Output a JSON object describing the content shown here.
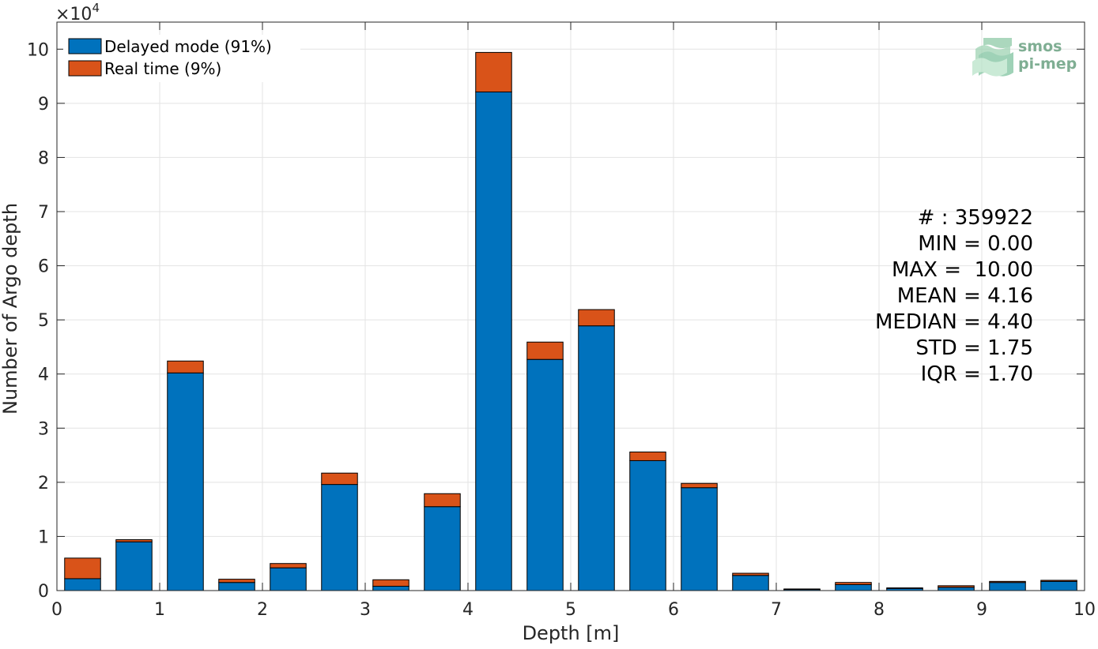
{
  "chart_data": {
    "type": "bar",
    "stacked": true,
    "x": [
      0.25,
      0.75,
      1.25,
      1.75,
      2.25,
      2.75,
      3.25,
      3.75,
      4.25,
      4.75,
      5.25,
      5.75,
      6.25,
      6.75,
      7.25,
      7.75,
      8.25,
      8.75,
      9.25,
      9.75
    ],
    "series": [
      {
        "name": "Delayed mode (91%)",
        "color": "#0072bd",
        "values": [
          2200,
          9000,
          40200,
          1500,
          4200,
          19600,
          800,
          15500,
          92100,
          42700,
          48900,
          24000,
          19000,
          2800,
          200,
          1100,
          400,
          600,
          1500,
          1700
        ]
      },
      {
        "name": "Real time (9%)",
        "color": "#d95319",
        "values": [
          3800,
          400,
          2200,
          600,
          800,
          2100,
          1200,
          2400,
          7300,
          3200,
          3000,
          1600,
          800,
          400,
          100,
          400,
          100,
          300,
          200,
          200
        ]
      }
    ],
    "xlabel": "Depth [m]",
    "ylabel": "Number of Argo depth",
    "xlim": [
      0,
      10
    ],
    "ylim": [
      0,
      105000
    ],
    "xticks": [
      "0",
      "1",
      "2",
      "3",
      "4",
      "5",
      "6",
      "7",
      "8",
      "9",
      "10"
    ],
    "yticks": [
      "0",
      "1",
      "2",
      "3",
      "4",
      "5",
      "6",
      "7",
      "8",
      "9",
      "10"
    ],
    "y_multiplier": "×10",
    "y_multiplier_exponent": "4",
    "grid": true,
    "legend_position": "top-left",
    "bar_width": 0.35
  },
  "stats": [
    "# : 359922",
    "MIN = 0.00",
    "MAX =  10.00",
    "MEAN = 4.16",
    "MEDIAN = 4.40",
    "STD = 1.75",
    "IQR = 1.70"
  ],
  "logo": {
    "line1": "smos",
    "line2": "pi-mep"
  }
}
